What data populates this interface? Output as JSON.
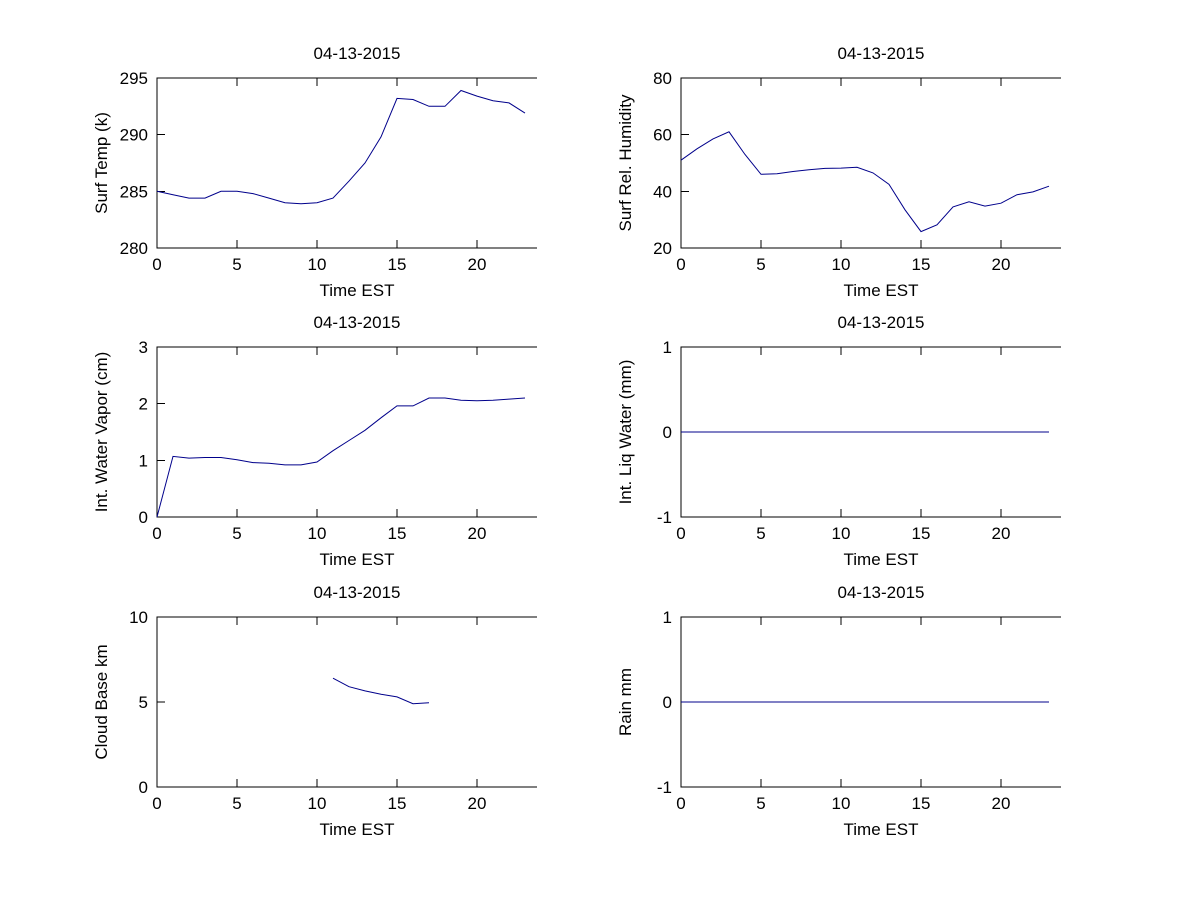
{
  "figure": {
    "background": "#ffffff",
    "axis_color": "#000000",
    "line_color": "#00008B",
    "date_title": "04-13-2015"
  },
  "chart_data": [
    {
      "type": "line",
      "title": "04-13-2015",
      "ylabel": "Surf Temp (k)",
      "xlabel": "Time EST",
      "xlim": [
        0,
        25
      ],
      "ylim": [
        280,
        295
      ],
      "xticks": [
        0,
        5,
        10,
        15,
        20,
        25
      ],
      "yticks": [
        280,
        285,
        290,
        295
      ],
      "grid": false,
      "legend": null,
      "line_color": "#00008B",
      "x": [
        0,
        1,
        2,
        3,
        4,
        5,
        6,
        7,
        8,
        9,
        10,
        11,
        12,
        13,
        14,
        15,
        16,
        17,
        18,
        19,
        20,
        21,
        22,
        23
      ],
      "y": [
        285,
        284.7,
        284.4,
        284.4,
        285,
        285,
        284.8,
        284.4,
        284,
        283.9,
        284,
        284.4,
        285.9,
        287.5,
        289.8,
        293.2,
        293.1,
        292.5,
        292.5,
        293.9,
        293.4,
        293,
        292.8,
        291.9
      ]
    },
    {
      "type": "line",
      "title": "04-13-2015",
      "ylabel": "Surf Rel. Humidity",
      "xlabel": "Time EST",
      "xlim": [
        0,
        25
      ],
      "ylim": [
        20,
        80
      ],
      "xticks": [
        0,
        5,
        10,
        15,
        20,
        25
      ],
      "yticks": [
        20,
        40,
        60,
        80
      ],
      "grid": false,
      "legend": null,
      "line_color": "#00008B",
      "x": [
        0,
        1,
        2,
        3,
        4,
        5,
        6,
        7,
        8,
        9,
        10,
        11,
        12,
        13,
        14,
        15,
        16,
        17,
        18,
        19,
        20,
        21,
        22,
        23
      ],
      "y": [
        51,
        55,
        58.5,
        61,
        53,
        46,
        46.2,
        47,
        47.6,
        48.1,
        48.2,
        48.5,
        46.5,
        42.5,
        33.5,
        25.8,
        28.2,
        34.5,
        36.3,
        34.8,
        35.8,
        38.8,
        39.8,
        41.8
      ]
    },
    {
      "type": "line",
      "title": "04-13-2015",
      "ylabel": "Int. Water Vapor (cm)",
      "xlabel": "Time EST",
      "xlim": [
        0,
        25
      ],
      "ylim": [
        0,
        3
      ],
      "xticks": [
        0,
        5,
        10,
        15,
        20,
        25
      ],
      "yticks": [
        0,
        1,
        2,
        3
      ],
      "grid": false,
      "legend": null,
      "line_color": "#00008B",
      "x": [
        0,
        1,
        2,
        3,
        4,
        5,
        6,
        7,
        8,
        9,
        10,
        11,
        12,
        13,
        14,
        15,
        16,
        17,
        18,
        19,
        20,
        21,
        22,
        23
      ],
      "y": [
        0,
        1.07,
        1.04,
        1.05,
        1.05,
        1.01,
        0.96,
        0.95,
        0.92,
        0.92,
        0.97,
        1.17,
        1.35,
        1.53,
        1.75,
        1.96,
        1.96,
        2.1,
        2.1,
        2.06,
        2.05,
        2.06,
        2.08,
        2.1
      ]
    },
    {
      "type": "line",
      "title": "04-13-2015",
      "ylabel": "Int. Liq Water (mm)",
      "xlabel": "Time EST",
      "xlim": [
        0,
        25
      ],
      "ylim": [
        -1,
        1
      ],
      "xticks": [
        0,
        5,
        10,
        15,
        20,
        25
      ],
      "yticks": [
        -1,
        0,
        1
      ],
      "grid": false,
      "legend": null,
      "line_color": "#00008B",
      "x": [
        0,
        1,
        2,
        3,
        4,
        5,
        6,
        7,
        8,
        9,
        10,
        11,
        12,
        13,
        14,
        15,
        16,
        17,
        18,
        19,
        20,
        21,
        22,
        23
      ],
      "y": [
        0,
        0,
        0,
        0,
        0,
        0,
        0,
        0,
        0,
        0,
        0,
        0,
        0,
        0,
        0,
        0,
        0,
        0,
        0,
        0,
        0,
        0,
        0,
        0
      ]
    },
    {
      "type": "line",
      "title": "04-13-2015",
      "ylabel": "Cloud Base km",
      "xlabel": "Time EST",
      "xlim": [
        0,
        25
      ],
      "ylim": [
        0,
        10
      ],
      "xticks": [
        0,
        5,
        10,
        15,
        20,
        25
      ],
      "yticks": [
        0,
        5,
        10
      ],
      "grid": false,
      "legend": null,
      "line_color": "#00008B",
      "x": [
        11,
        12,
        13,
        14,
        15,
        16,
        17
      ],
      "y": [
        6.4,
        5.9,
        5.65,
        5.45,
        5.3,
        4.9,
        4.95
      ]
    },
    {
      "type": "line",
      "title": "04-13-2015",
      "ylabel": "Rain mm",
      "xlabel": "Time EST",
      "xlim": [
        0,
        25
      ],
      "ylim": [
        -1,
        1
      ],
      "xticks": [
        0,
        5,
        10,
        15,
        20,
        25
      ],
      "yticks": [
        -1,
        0,
        1
      ],
      "grid": false,
      "legend": null,
      "line_color": "#00008B",
      "x": [
        0,
        1,
        2,
        3,
        4,
        5,
        6,
        7,
        8,
        9,
        10,
        11,
        12,
        13,
        14,
        15,
        16,
        17,
        18,
        19,
        20,
        21,
        22,
        23
      ],
      "y": [
        0,
        0,
        0,
        0,
        0,
        0,
        0,
        0,
        0,
        0,
        0,
        0,
        0,
        0,
        0,
        0,
        0,
        0,
        0,
        0,
        0,
        0,
        0,
        0
      ]
    }
  ]
}
